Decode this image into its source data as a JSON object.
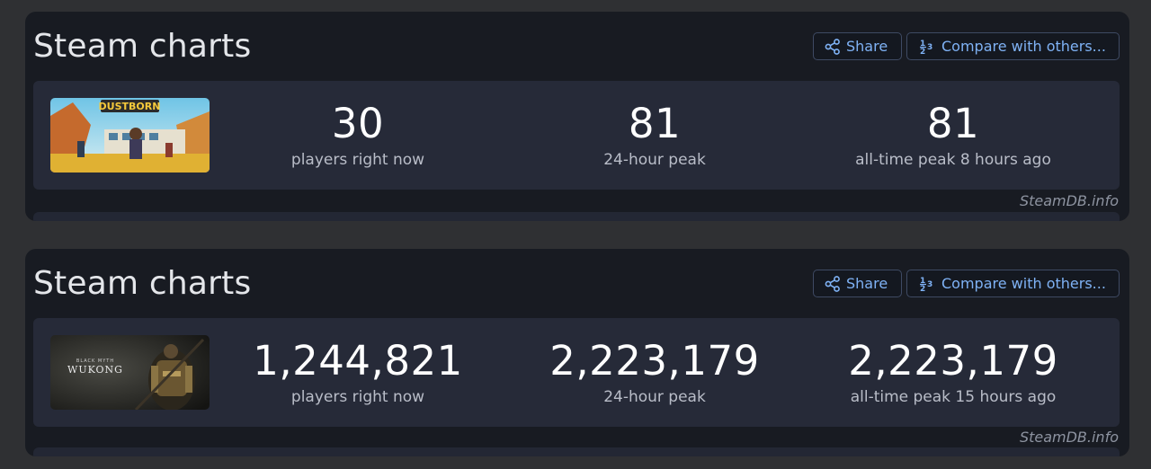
{
  "cards": [
    {
      "title": "Steam charts",
      "share_label": "Share",
      "compare_label": "Compare with others...",
      "thumbnail_text": "DUSTBORN",
      "stats": [
        {
          "value": "30",
          "label": "players right now"
        },
        {
          "value": "81",
          "label": "24-hour peak"
        },
        {
          "value": "81",
          "label": "all-time peak 8 hours ago"
        }
      ],
      "credit": "SteamDB.info"
    },
    {
      "title": "Steam charts",
      "share_label": "Share",
      "compare_label": "Compare with others...",
      "thumbnail_text_top": "BLACK MYTH",
      "thumbnail_text": "WUKONG",
      "stats": [
        {
          "value": "1,244,821",
          "label": "players right now"
        },
        {
          "value": "2,223,179",
          "label": "24-hour peak"
        },
        {
          "value": "2,223,179",
          "label": "all-time peak 15 hours ago"
        }
      ],
      "credit": "SteamDB.info"
    }
  ],
  "colors": {
    "page_bg": "#2f3033",
    "card_bg": "#181b22",
    "stats_bg": "#262a38",
    "accent": "#7fb2f5",
    "value_text": "#ffffff",
    "label_text": "#b9bdc8"
  },
  "icons": [
    "share-icon",
    "compare-numbers-icon"
  ]
}
